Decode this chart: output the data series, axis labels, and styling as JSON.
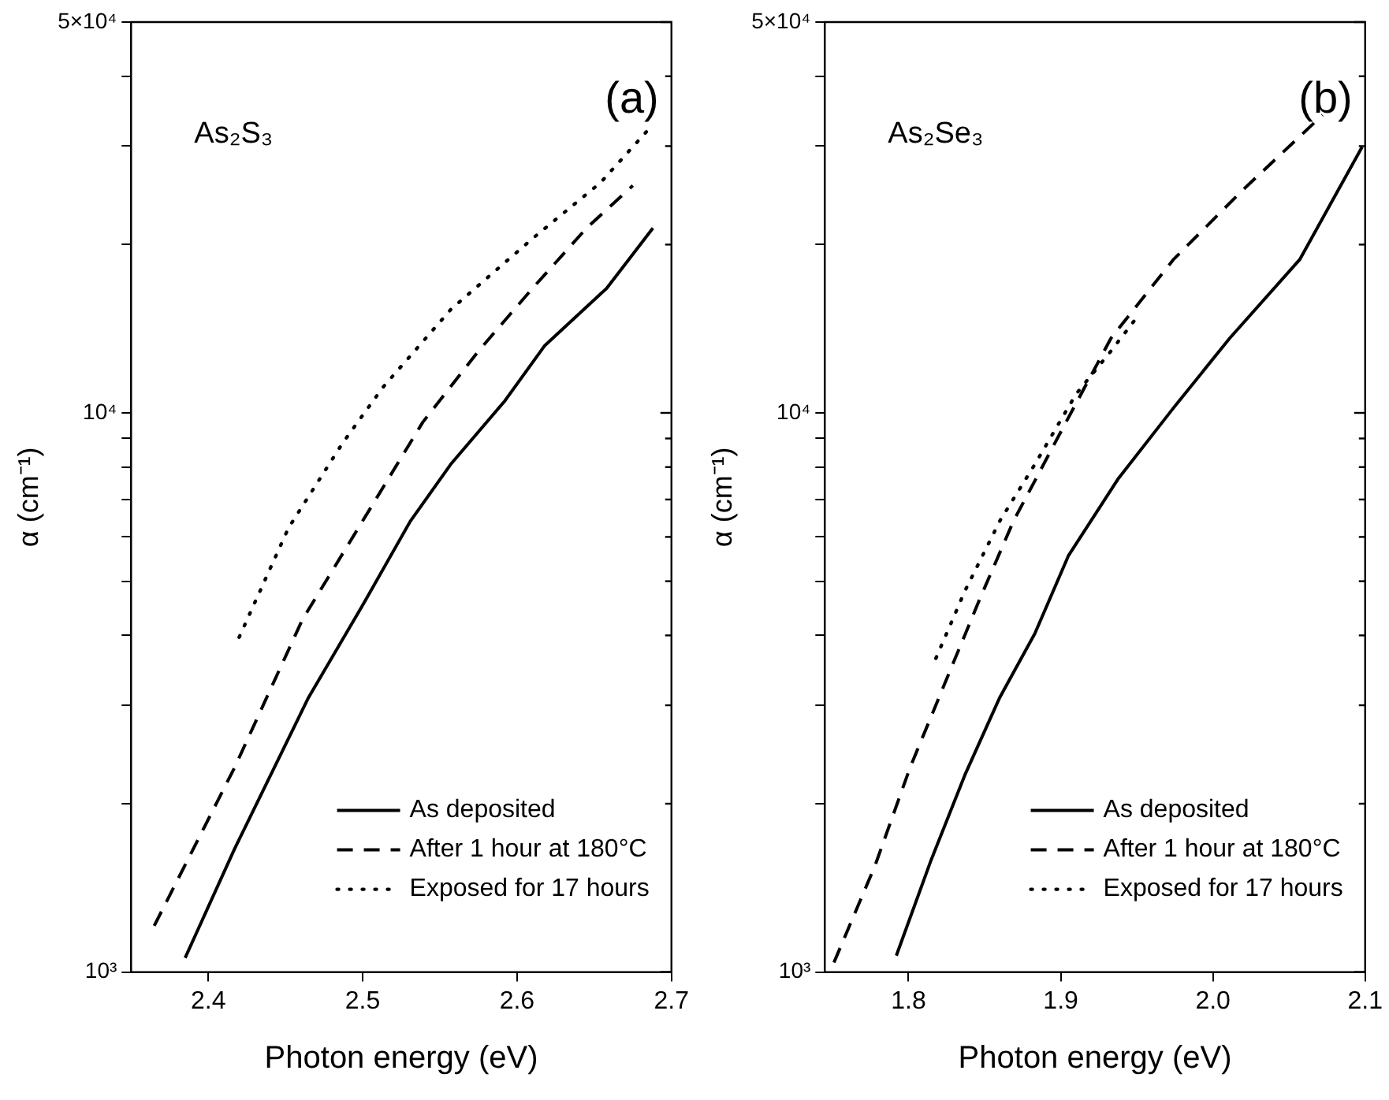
{
  "chart_data": [
    {
      "type": "line",
      "title": "(a)",
      "annotations": [
        "As₂S₃"
      ],
      "xlabel": "Photon energy (eV)",
      "ylabel": "α (cm⁻¹)",
      "log": "y",
      "grid": false,
      "legend": "bottom right",
      "marker": "none",
      "xlim": [
        2.35,
        2.7
      ],
      "xticks": [
        2.4,
        2.5,
        2.6,
        2.7
      ],
      "ylim": [
        1000,
        50000
      ],
      "yticks": [
        {
          "value": 1000,
          "label": "10³"
        },
        {
          "value": 2000,
          "label": null
        },
        {
          "value": 3000,
          "label": null
        },
        {
          "value": 4000,
          "label": null
        },
        {
          "value": 5000,
          "label": null
        },
        {
          "value": 6000,
          "label": null
        },
        {
          "value": 7000,
          "label": null
        },
        {
          "value": 8000,
          "label": null
        },
        {
          "value": 9000,
          "label": null
        },
        {
          "value": 10000,
          "label": "10⁴"
        },
        {
          "value": 20000,
          "label": null
        },
        {
          "value": 30000,
          "label": null
        },
        {
          "value": 40000,
          "label": null
        },
        {
          "value": 50000,
          "label": "5×10⁴"
        }
      ],
      "series": [
        {
          "name": "As deposited",
          "color": "#000000",
          "line_style": "solid",
          "x": [
            2.385,
            2.417,
            2.465,
            2.5,
            2.531,
            2.557,
            2.592,
            2.618,
            2.658,
            2.688
          ],
          "values": [
            1060,
            1660,
            3100,
            4530,
            6410,
            8090,
            10500,
            13200,
            16700,
            21400
          ]
        },
        {
          "name": "After 1 hour at 180°C",
          "color": "#000000",
          "line_style": "dashed",
          "x": [
            2.365,
            2.417,
            2.461,
            2.5,
            2.539,
            2.575,
            2.61,
            2.645,
            2.675
          ],
          "values": [
            1210,
            2320,
            4270,
            6410,
            9630,
            12900,
            16700,
            21400,
            25500
          ]
        },
        {
          "name": "Exposed for 17 hours",
          "color": "#000000",
          "line_style": "dotted",
          "x": [
            2.42,
            2.452,
            2.487,
            2.513,
            2.557,
            2.61,
            2.654,
            2.685
          ],
          "values": [
            3970,
            6230,
            8830,
            11100,
            15300,
            20500,
            25800,
            32100
          ]
        }
      ]
    },
    {
      "type": "line",
      "title": "(b)",
      "annotations": [
        "As₂Se₃"
      ],
      "xlabel": "Photon energy (eV)",
      "ylabel": "α (cm⁻¹)",
      "log": "y",
      "grid": false,
      "legend": "bottom right",
      "marker": "none",
      "xlim": [
        1.745,
        2.1
      ],
      "xticks": [
        1.8,
        1.9,
        {
          "value": 2.0,
          "label": "2.0"
        },
        2.1
      ],
      "ylim": [
        1000,
        50000
      ],
      "yticks": [
        {
          "value": 1000,
          "label": "10³"
        },
        {
          "value": 2000,
          "label": null
        },
        {
          "value": 3000,
          "label": null
        },
        {
          "value": 4000,
          "label": null
        },
        {
          "value": 5000,
          "label": null
        },
        {
          "value": 6000,
          "label": null
        },
        {
          "value": 7000,
          "label": null
        },
        {
          "value": 8000,
          "label": null
        },
        {
          "value": 9000,
          "label": null
        },
        {
          "value": 10000,
          "label": "10⁴"
        },
        {
          "value": 20000,
          "label": null
        },
        {
          "value": 30000,
          "label": null
        },
        {
          "value": 40000,
          "label": null
        },
        {
          "value": 50000,
          "label": "5×10⁴"
        }
      ],
      "series": [
        {
          "name": "As deposited",
          "color": "#000000",
          "line_style": "solid",
          "x": [
            1.792,
            1.815,
            1.837,
            1.86,
            1.883,
            1.905,
            1.938,
            1.974,
            2.011,
            2.057,
            2.098
          ],
          "values": [
            1070,
            1590,
            2250,
            3100,
            4030,
            5550,
            7640,
            10200,
            13600,
            18800,
            29900
          ]
        },
        {
          "name": "After 1 hour at 180°C",
          "color": "#000000",
          "line_style": "dashed",
          "x": [
            1.751,
            1.778,
            1.801,
            1.824,
            1.847,
            1.869,
            1.901,
            1.933,
            1.974,
            2.02,
            2.072
          ],
          "values": [
            1040,
            1550,
            2320,
            3290,
            4660,
            6410,
            9350,
            13600,
            18800,
            25100,
            34100
          ]
        },
        {
          "name": "Exposed for 17 hours",
          "color": "#000000",
          "line_style": "dotted",
          "x": [
            1.818,
            1.837,
            1.86,
            1.883,
            1.91,
            1.933,
            1.949
          ],
          "values": [
            3640,
            4800,
            6410,
            8090,
            10800,
            12900,
            14700
          ]
        }
      ]
    }
  ]
}
